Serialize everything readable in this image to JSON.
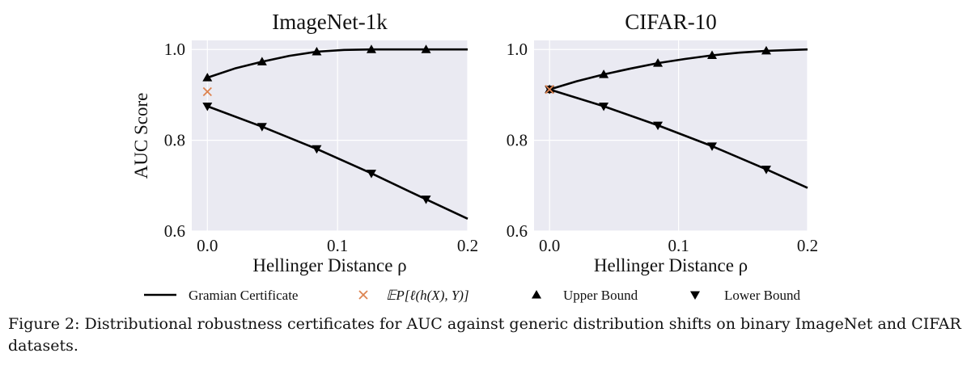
{
  "chart_data": [
    {
      "type": "line",
      "title": "ImageNet-1k",
      "xlabel": "Hellinger Distance ρ",
      "ylabel": "AUC Score",
      "xlim": [
        -0.012,
        0.2
      ],
      "ylim": [
        0.6,
        1.02
      ],
      "xticks": [
        0.0,
        0.1,
        0.2
      ],
      "xtick_labels": [
        "0.0",
        "0.1",
        "0.2"
      ],
      "yticks": [
        0.6,
        0.8,
        1.0
      ],
      "ytick_labels": [
        "0.6",
        "0.8",
        "1.0"
      ],
      "grid": true,
      "series": [
        {
          "role": "upper",
          "x": [
            0.0,
            0.021,
            0.042,
            0.063,
            0.084,
            0.105,
            0.126,
            0.147,
            0.168,
            0.2
          ],
          "values": [
            0.938,
            0.958,
            0.973,
            0.986,
            0.995,
            0.999,
            1.0,
            1.0,
            1.0,
            1.0
          ]
        },
        {
          "role": "lower",
          "x": [
            0.0,
            0.042,
            0.084,
            0.126,
            0.168,
            0.2
          ],
          "values": [
            0.875,
            0.83,
            0.781,
            0.727,
            0.67,
            0.627
          ]
        },
        {
          "role": "point",
          "x": [
            0.0
          ],
          "values": [
            0.907
          ]
        }
      ],
      "markers_upper_x": [
        0.0,
        0.042,
        0.084,
        0.126,
        0.168
      ],
      "markers_lower_x": [
        0.0,
        0.042,
        0.084,
        0.126,
        0.168
      ]
    },
    {
      "type": "line",
      "title": "CIFAR-10",
      "xlabel": "Hellinger Distance ρ",
      "ylabel": "",
      "xlim": [
        -0.012,
        0.2
      ],
      "ylim": [
        0.6,
        1.02
      ],
      "xticks": [
        0.0,
        0.1,
        0.2
      ],
      "xtick_labels": [
        "0.0",
        "0.1",
        "0.2"
      ],
      "yticks": [
        0.6,
        0.8,
        1.0
      ],
      "ytick_labels": [
        "0.6",
        "0.8",
        "1.0"
      ],
      "grid": true,
      "series": [
        {
          "role": "upper",
          "x": [
            0.0,
            0.021,
            0.042,
            0.063,
            0.084,
            0.105,
            0.126,
            0.147,
            0.168,
            0.2
          ],
          "values": [
            0.912,
            0.93,
            0.945,
            0.958,
            0.97,
            0.979,
            0.987,
            0.993,
            0.997,
            1.0
          ]
        },
        {
          "role": "lower",
          "x": [
            0.0,
            0.042,
            0.084,
            0.126,
            0.168,
            0.2
          ],
          "values": [
            0.912,
            0.875,
            0.833,
            0.787,
            0.736,
            0.695
          ]
        },
        {
          "role": "point",
          "x": [
            0.0
          ],
          "values": [
            0.912
          ]
        }
      ],
      "markers_upper_x": [
        0.0,
        0.042,
        0.084,
        0.126,
        0.168
      ],
      "markers_lower_x": [
        0.0,
        0.042,
        0.084,
        0.126,
        0.168
      ]
    }
  ],
  "legend": {
    "placement": "bottom",
    "items": [
      {
        "key": "line",
        "label": "Gramian Certificate"
      },
      {
        "key": "cross",
        "label": "𝔼P[ℓ(h(X), Y)]"
      },
      {
        "key": "up",
        "label": "Upper Bound"
      },
      {
        "key": "down",
        "label": "Lower Bound"
      }
    ]
  },
  "colors": {
    "panel_bg": "#eaeaf2",
    "grid": "#ffffff",
    "line": "#000000",
    "cross": "#dd8452"
  },
  "caption": "Figure 2: Distributional robustness certificates for AUC against generic distribution shifts on binary ImageNet and CIFAR datasets."
}
